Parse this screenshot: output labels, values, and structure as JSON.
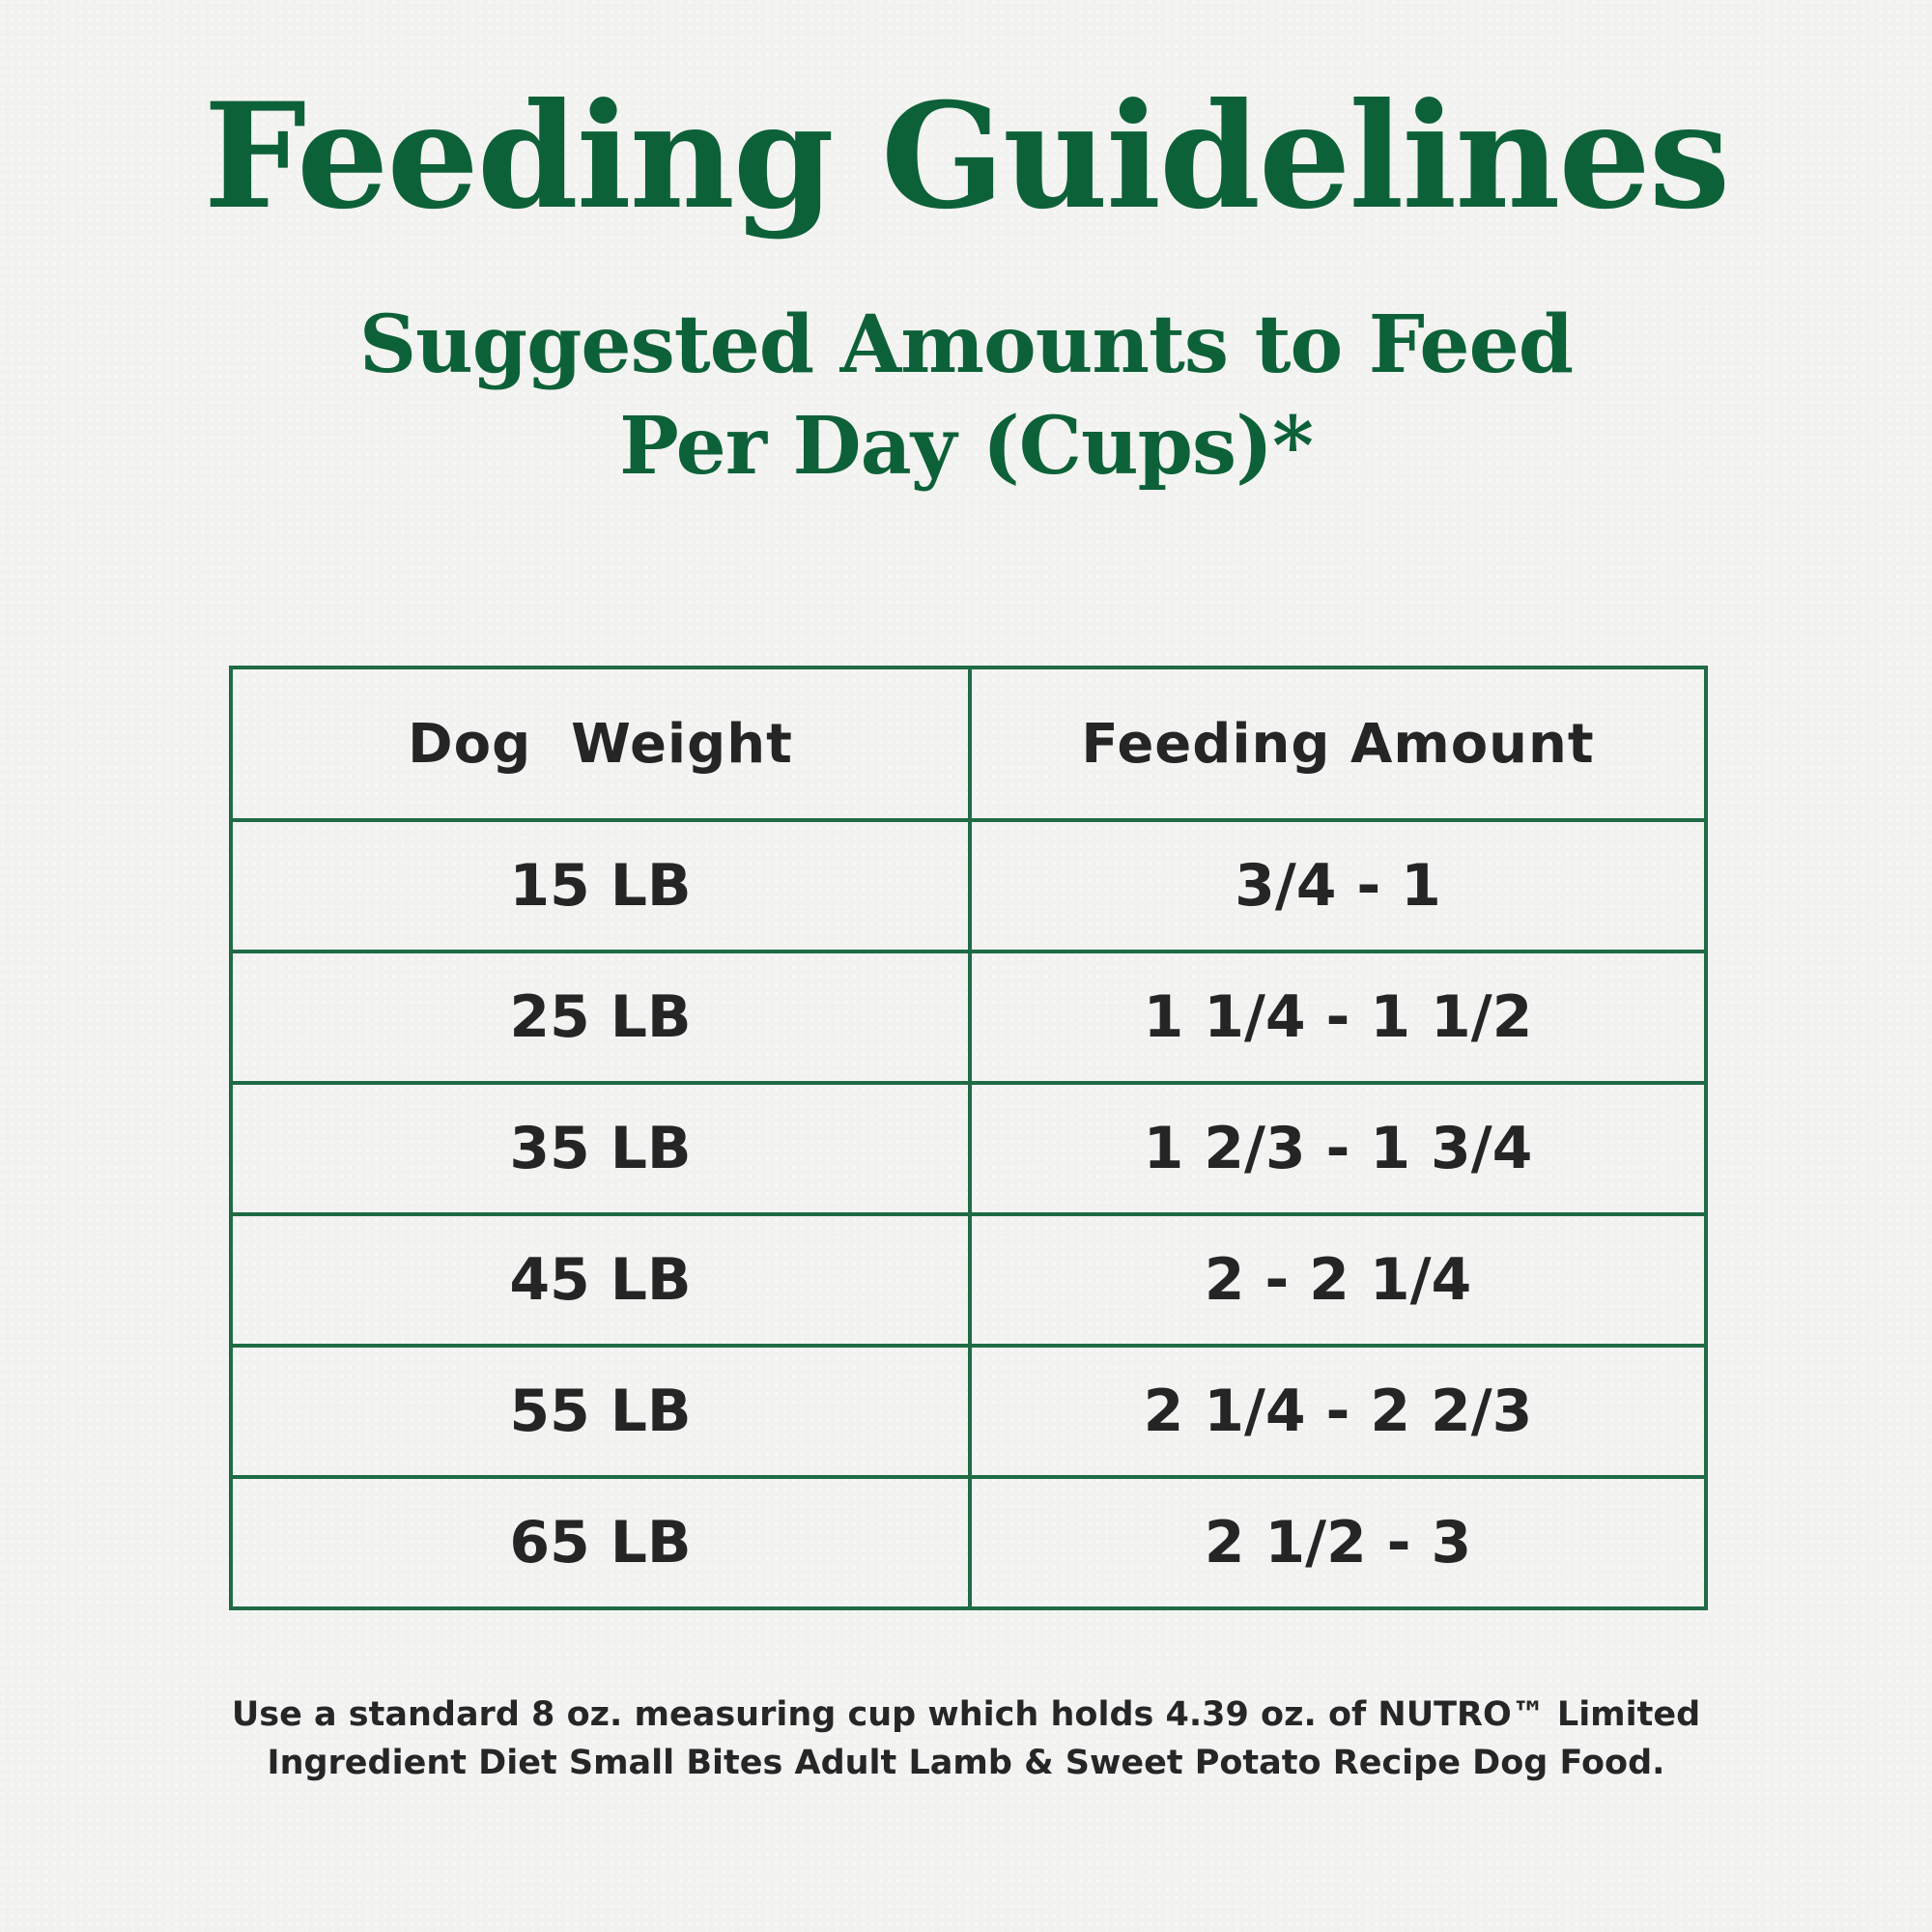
{
  "title": "Feeding Guidelines",
  "subtitle": {
    "line1": "Suggested Amounts to Feed",
    "line2": "Per Day (Cups)*"
  },
  "table": {
    "headers": [
      "Dog  Weight",
      "Feeding Amount"
    ],
    "rows": [
      [
        "15 LB",
        "3/4 - 1"
      ],
      [
        "25 LB",
        "1 1/4 - 1 1/2"
      ],
      [
        "35 LB",
        "1 2/3 - 1 3/4"
      ],
      [
        "45 LB",
        "2 - 2 1/4"
      ],
      [
        "55 LB",
        "2 1/4 - 2 2/3"
      ],
      [
        "65 LB",
        "2 1/2 - 3"
      ]
    ]
  },
  "footnote": {
    "line1": "Use a standard 8 oz. measuring cup which holds 4.39 oz. of NUTRO™ Limited",
    "line2": "Ingredient Diet Small Bites Adult Lamb & Sweet Potato Recipe Dog Food."
  },
  "colors": {
    "brand_green": "#0d6138",
    "table_border": "#1f6b45",
    "text": "#252525",
    "background": "#f2f2f0"
  }
}
